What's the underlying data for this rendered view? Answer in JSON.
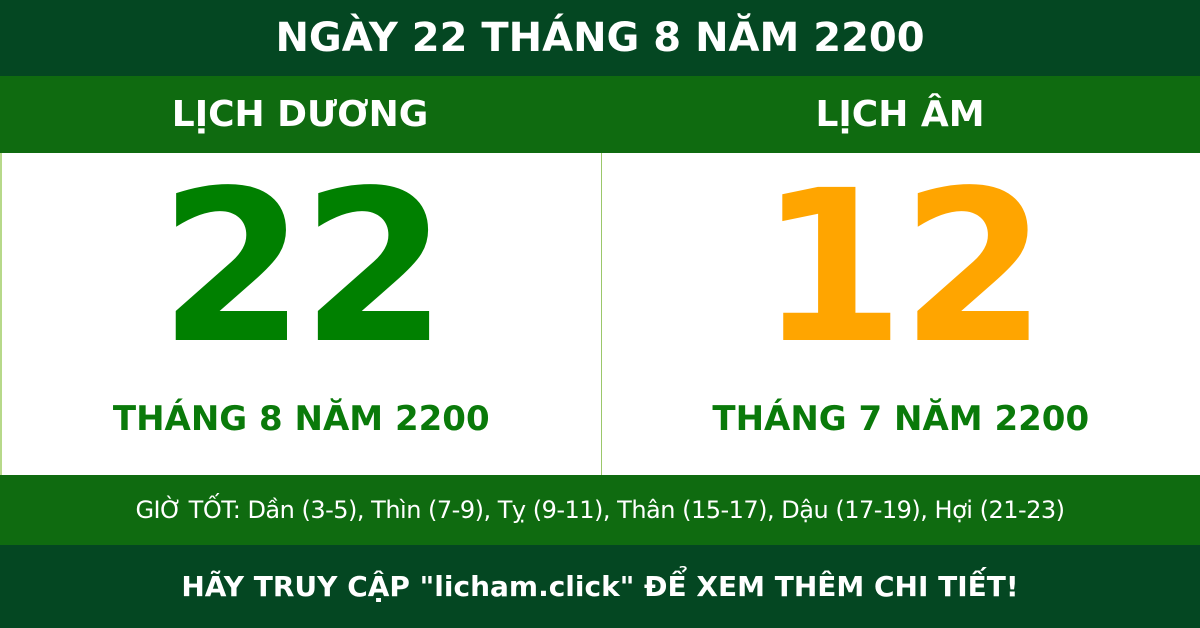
{
  "title": "NGÀY 22 THÁNG 8 NĂM 2200",
  "solar": {
    "label": "LỊCH DƯƠNG",
    "day": "22",
    "month_year": "THÁNG 8 NĂM 2200"
  },
  "lunar": {
    "label": "LỊCH ÂM",
    "day": "12",
    "month_year": "THÁNG 7 NĂM 2200"
  },
  "good_hours": "GIỜ TỐT: Dần (3-5), Thìn (7-9), Tỵ (9-11), Thân (15-17), Dậu (17-19), Hợi (21-23)",
  "footer": "HÃY TRUY CẬP \"licham.click\" ĐỂ XEM THÊM CHI TIẾT!",
  "colors": {
    "dark_green": "#044722",
    "green": "#0f6b10",
    "solar_day": "#008000",
    "lunar_day": "#ffa500"
  }
}
